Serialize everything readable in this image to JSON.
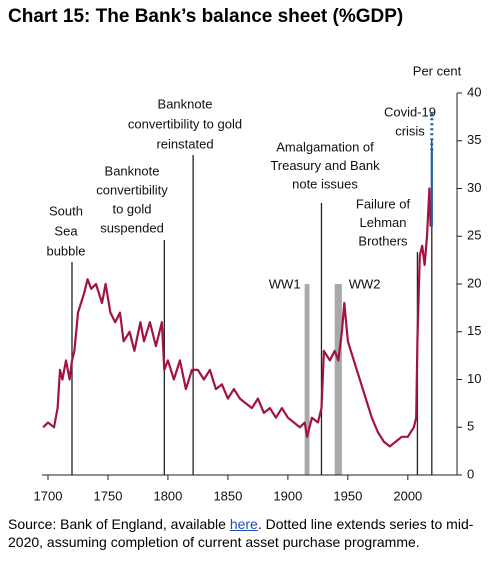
{
  "chart_data": {
    "type": "line",
    "title": "Chart 15:  The Bank’s balance sheet (%GDP)",
    "ylabel": "Per cent",
    "xlim": [
      1695,
      2041
    ],
    "xticks": [
      1700,
      1750,
      1800,
      1850,
      1900,
      1950,
      2000
    ],
    "ylim": [
      0,
      40
    ],
    "yticks": [
      0,
      5,
      10,
      15,
      20,
      25,
      30,
      35,
      40
    ],
    "series": [
      {
        "color": "#a3133f",
        "style": "solid",
        "x": [
          1696,
          1700,
          1705,
          1708,
          1710,
          1712,
          1715,
          1718,
          1720,
          1722,
          1725,
          1730,
          1733,
          1736,
          1740,
          1745,
          1748,
          1752,
          1756,
          1760,
          1763,
          1768,
          1772,
          1777,
          1780,
          1785,
          1790,
          1795,
          1797,
          1800,
          1805,
          1810,
          1815,
          1820,
          1825,
          1830,
          1835,
          1840,
          1845,
          1850,
          1855,
          1860,
          1865,
          1870,
          1875,
          1880,
          1885,
          1890,
          1895,
          1900,
          1905,
          1910,
          1914,
          1916,
          1918,
          1920,
          1925,
          1928,
          1930,
          1935,
          1939,
          1942,
          1945,
          1947,
          1950,
          1955,
          1960,
          1965,
          1970,
          1975,
          1980,
          1985,
          1990,
          1995,
          2000,
          2005,
          2007,
          2008,
          2010,
          2012,
          2014,
          2016,
          2018,
          2019
        ],
        "values": [
          5,
          5.5,
          5,
          7,
          11,
          10,
          12,
          10,
          12,
          13,
          17,
          19,
          20.5,
          19.5,
          20,
          18,
          20,
          17,
          16,
          17,
          14,
          15,
          13,
          16,
          14,
          16,
          13.5,
          16,
          11,
          12,
          10,
          12,
          9,
          11,
          11,
          10,
          11,
          9,
          9.5,
          8,
          9,
          8,
          7.5,
          7,
          8,
          6.5,
          7,
          6,
          7,
          6,
          5.5,
          5,
          5.5,
          4,
          5,
          6,
          5.5,
          7,
          13,
          12,
          13,
          12,
          15,
          18,
          14,
          12,
          10,
          8,
          6,
          4.5,
          3.5,
          3,
          3.5,
          4,
          4,
          5,
          6,
          14,
          23,
          24,
          22,
          25,
          30,
          26
        ]
      },
      {
        "color": "#1f5f9e",
        "style": "solid",
        "x": [
          2020,
          2020
        ],
        "values": [
          26,
          34
        ]
      },
      {
        "color": "#1f5f9e",
        "style": "dotted",
        "x": [
          2020,
          2020
        ],
        "values": [
          34,
          38
        ]
      }
    ],
    "shaded": [
      {
        "label": "WW1",
        "x": [
          1914,
          1918
        ],
        "y": 20
      },
      {
        "label": "WW2",
        "x": [
          1939,
          1945
        ],
        "y": 20
      }
    ],
    "annotations": [
      {
        "text": [
          "South",
          "Sea",
          "bubble"
        ],
        "x": 1720
      },
      {
        "text": [
          "Banknote",
          "convertibility",
          "to gold",
          "suspended"
        ],
        "x": 1797
      },
      {
        "text": [
          "Banknote",
          "convertibility to gold",
          "reinstated"
        ],
        "x": 1821
      },
      {
        "text": [
          "Amalgamation of",
          "Treasury and Bank",
          "note issues"
        ],
        "x": 1928
      },
      {
        "text": [
          "Failure of",
          "Lehman",
          "Brothers"
        ],
        "x": 2008
      },
      {
        "text": [
          "Covid-19",
          "crisis"
        ],
        "x": 2020
      }
    ],
    "footer": [
      "Source: Bank of England, available ",
      "here",
      ".  Dotted line extends series to mid-2020, assuming completion of current asset purchase programme."
    ]
  }
}
